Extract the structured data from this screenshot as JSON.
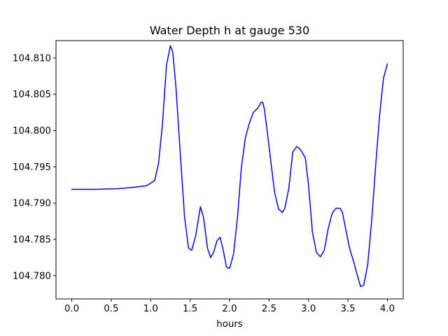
{
  "chart_data": {
    "type": "line",
    "title": "Water Depth h at gauge 530",
    "xlabel": "hours",
    "ylabel": "",
    "xlim": [
      -0.2,
      4.2
    ],
    "ylim": [
      104.7768,
      104.8124
    ],
    "grid": false,
    "x_ticks": [
      0.0,
      0.5,
      1.0,
      1.5,
      2.0,
      2.5,
      3.0,
      3.5,
      4.0
    ],
    "x_tick_labels": [
      "0.0",
      "0.5",
      "1.0",
      "1.5",
      "2.0",
      "2.5",
      "3.0",
      "3.5",
      "4.0"
    ],
    "y_ticks": [
      104.78,
      104.785,
      104.79,
      104.795,
      104.8,
      104.805,
      104.81
    ],
    "y_tick_labels": [
      "104.780",
      "104.785",
      "104.790",
      "104.795",
      "104.800",
      "104.805",
      "104.810"
    ],
    "series": [
      {
        "color": "#0000ff",
        "x": [
          0.0,
          0.3,
          0.6,
          0.8,
          0.95,
          1.05,
          1.1,
          1.15,
          1.2,
          1.25,
          1.28,
          1.32,
          1.38,
          1.43,
          1.48,
          1.52,
          1.57,
          1.63,
          1.67,
          1.72,
          1.76,
          1.8,
          1.84,
          1.88,
          1.92,
          1.96,
          2.0,
          2.05,
          2.1,
          2.15,
          2.2,
          2.25,
          2.3,
          2.35,
          2.38,
          2.4,
          2.42,
          2.44,
          2.47,
          2.52,
          2.57,
          2.62,
          2.67,
          2.7,
          2.75,
          2.8,
          2.85,
          2.88,
          2.92,
          2.96,
          3.0,
          3.05,
          3.1,
          3.15,
          3.2,
          3.25,
          3.3,
          3.35,
          3.4,
          3.43,
          3.47,
          3.52,
          3.57,
          3.62,
          3.66,
          3.7,
          3.75,
          3.8,
          3.85,
          3.9,
          3.95,
          4.0
        ],
        "y": [
          104.7919,
          104.7919,
          104.792,
          104.7922,
          104.7924,
          104.7931,
          104.7955,
          104.801,
          104.809,
          104.8117,
          104.8108,
          104.806,
          104.796,
          104.788,
          104.7838,
          104.7835,
          104.7855,
          104.7895,
          104.788,
          104.7838,
          104.7825,
          104.7833,
          104.7848,
          104.7853,
          104.7835,
          104.7812,
          104.781,
          104.783,
          104.788,
          104.795,
          104.799,
          104.801,
          104.8025,
          104.803,
          104.8035,
          104.8039,
          104.8039,
          104.803,
          104.8005,
          104.796,
          104.7915,
          104.7892,
          104.7887,
          104.7893,
          104.792,
          104.797,
          104.7978,
          104.7976,
          104.797,
          104.7962,
          104.7925,
          104.786,
          104.7832,
          104.7826,
          104.7835,
          104.7865,
          104.7886,
          104.7893,
          104.7893,
          104.7887,
          104.7865,
          104.7838,
          104.782,
          104.78,
          104.7785,
          104.7787,
          104.7815,
          104.7875,
          104.795,
          104.802,
          104.8072,
          104.8092
        ]
      }
    ]
  }
}
